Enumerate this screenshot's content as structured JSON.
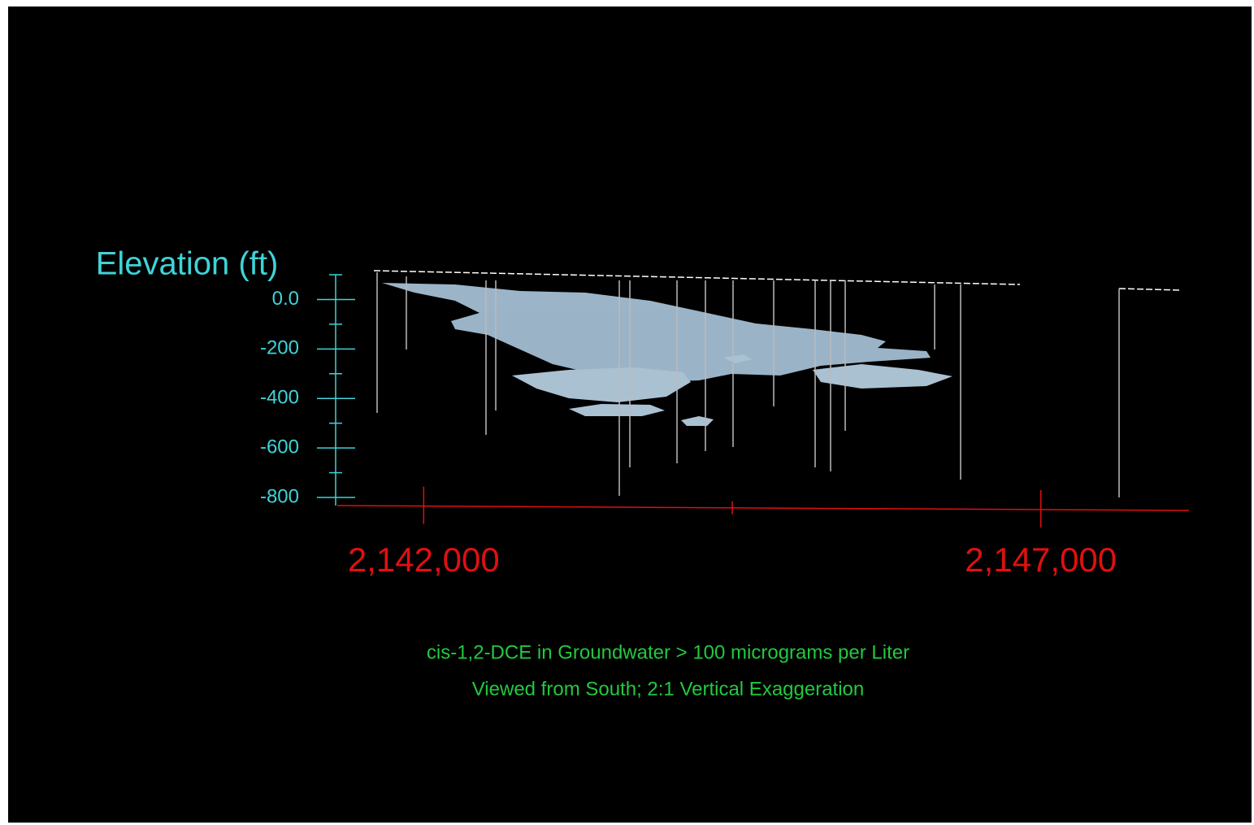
{
  "chart_data": {
    "type": "volume",
    "ylabel": "Elevation (ft)",
    "ylim": [
      -800,
      100
    ],
    "yticks": [
      {
        "value": 0,
        "label": "0.0"
      },
      -200,
      -400,
      -600,
      -800
    ],
    "yminorticks": [
      100,
      -100,
      -300,
      -500,
      -700
    ],
    "xlim": [
      2141300,
      2148200
    ],
    "xticks": [
      {
        "value": 2142000,
        "label": "2,142,000"
      },
      {
        "value": 2147000,
        "label": "2,147,000"
      }
    ],
    "xminorticks": [
      2144500
    ],
    "caption": [
      "cis-1,2-DCE in Groundwater > 100 micrograms per Liter",
      "Viewed from South; 2:1 Vertical Exaggeration"
    ],
    "colors": {
      "y_axis": "#3fd3d8",
      "x_axis": "#e01010",
      "caption": "#22c940",
      "plume": "#b9d2e4"
    }
  }
}
